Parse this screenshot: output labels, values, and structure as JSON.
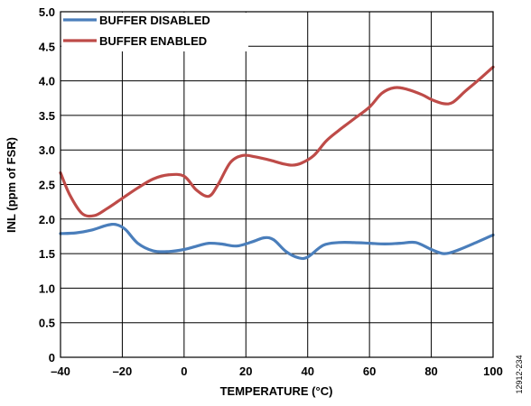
{
  "chart_data": {
    "type": "line",
    "xlabel": "TEMPERATURE (°C)",
    "ylabel": "INL (ppm of FSR)",
    "xlim": [
      -40,
      100
    ],
    "ylim": [
      0,
      5.0
    ],
    "x_ticks": [
      "–40",
      "–20",
      "0",
      "20",
      "40",
      "60",
      "80",
      "100"
    ],
    "y_ticks": [
      "0",
      "0.5",
      "1.0",
      "1.5",
      "2.0",
      "2.5",
      "3.0",
      "3.5",
      "4.0",
      "4.5",
      "5.0"
    ],
    "grid": true,
    "legend_position": "top-left",
    "series": [
      {
        "name": "BUFFER DISABLED",
        "color": "#4a7ebb",
        "points": [
          [
            -40,
            1.79
          ],
          [
            -35,
            1.8
          ],
          [
            -30,
            1.84
          ],
          [
            -25,
            1.91
          ],
          [
            -22,
            1.92
          ],
          [
            -19,
            1.85
          ],
          [
            -15,
            1.65
          ],
          [
            -10,
            1.54
          ],
          [
            -5,
            1.53
          ],
          [
            0,
            1.56
          ],
          [
            5,
            1.62
          ],
          [
            8,
            1.65
          ],
          [
            12,
            1.64
          ],
          [
            17,
            1.61
          ],
          [
            22,
            1.67
          ],
          [
            26,
            1.73
          ],
          [
            29,
            1.7
          ],
          [
            33,
            1.53
          ],
          [
            37,
            1.44
          ],
          [
            40,
            1.45
          ],
          [
            45,
            1.62
          ],
          [
            50,
            1.66
          ],
          [
            55,
            1.66
          ],
          [
            60,
            1.65
          ],
          [
            65,
            1.64
          ],
          [
            70,
            1.65
          ],
          [
            75,
            1.66
          ],
          [
            80,
            1.56
          ],
          [
            84,
            1.5
          ],
          [
            88,
            1.54
          ],
          [
            95,
            1.67
          ],
          [
            100,
            1.77
          ]
        ]
      },
      {
        "name": "BUFFER ENABLED",
        "color": "#be4b48",
        "points": [
          [
            -40,
            2.67
          ],
          [
            -37,
            2.35
          ],
          [
            -33,
            2.08
          ],
          [
            -29,
            2.05
          ],
          [
            -25,
            2.15
          ],
          [
            -20,
            2.3
          ],
          [
            -15,
            2.45
          ],
          [
            -10,
            2.58
          ],
          [
            -5,
            2.64
          ],
          [
            0,
            2.62
          ],
          [
            4,
            2.42
          ],
          [
            8,
            2.33
          ],
          [
            11,
            2.5
          ],
          [
            15,
            2.82
          ],
          [
            19,
            2.92
          ],
          [
            23,
            2.9
          ],
          [
            28,
            2.85
          ],
          [
            32,
            2.8
          ],
          [
            35,
            2.78
          ],
          [
            38,
            2.81
          ],
          [
            42,
            2.92
          ],
          [
            46,
            3.13
          ],
          [
            50,
            3.28
          ],
          [
            55,
            3.45
          ],
          [
            60,
            3.62
          ],
          [
            64,
            3.82
          ],
          [
            68,
            3.9
          ],
          [
            72,
            3.88
          ],
          [
            77,
            3.8
          ],
          [
            80,
            3.73
          ],
          [
            84,
            3.67
          ],
          [
            87,
            3.69
          ],
          [
            91,
            3.85
          ],
          [
            95,
            4.0
          ],
          [
            100,
            4.2
          ]
        ]
      }
    ]
  },
  "figure_id": "12912-234"
}
